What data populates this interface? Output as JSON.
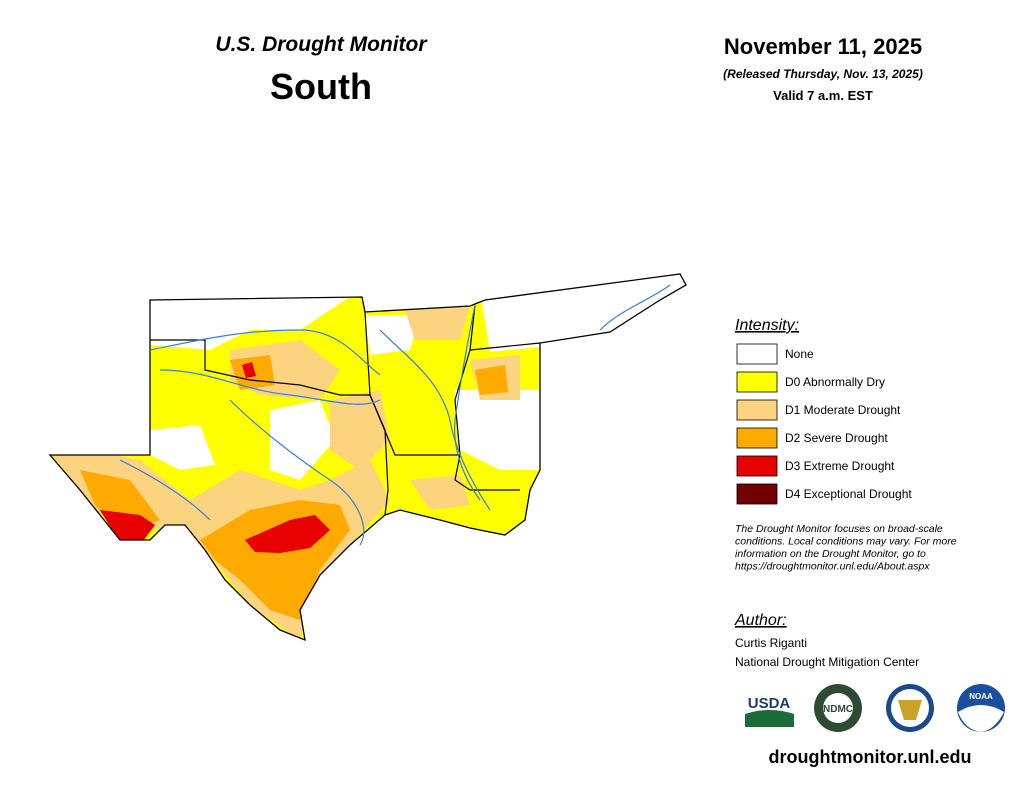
{
  "header": {
    "subtitle": "U.S. Drought Monitor",
    "title": "South",
    "date": "November 11, 2025",
    "released": "(Released Thursday, Nov. 13, 2025)",
    "valid": "Valid 7 a.m. EST"
  },
  "legend": {
    "title": "Intensity:",
    "items": [
      {
        "label": "None",
        "color": "#ffffff"
      },
      {
        "label": "D0 Abnormally Dry",
        "color": "#ffff00"
      },
      {
        "label": "D1 Moderate Drought",
        "color": "#fcd37f"
      },
      {
        "label": "D2 Severe Drought",
        "color": "#ffaa00"
      },
      {
        "label": "D3 Extreme Drought",
        "color": "#e60000"
      },
      {
        "label": "D4 Exceptional Drought",
        "color": "#730000"
      }
    ]
  },
  "note": [
    "The Drought Monitor focuses on broad-scale",
    "conditions. Local conditions may vary. For more",
    "information on the Drought Monitor, go to",
    "https://droughtmonitor.unl.edu/About.aspx"
  ],
  "author": {
    "title": "Author:",
    "name": "Curtis Riganti",
    "organization": "National Drought Mitigation Center"
  },
  "logos": [
    "USDA",
    "NDMC",
    "NOAA"
  ],
  "footer": "droughtmonitor.unl.edu"
}
